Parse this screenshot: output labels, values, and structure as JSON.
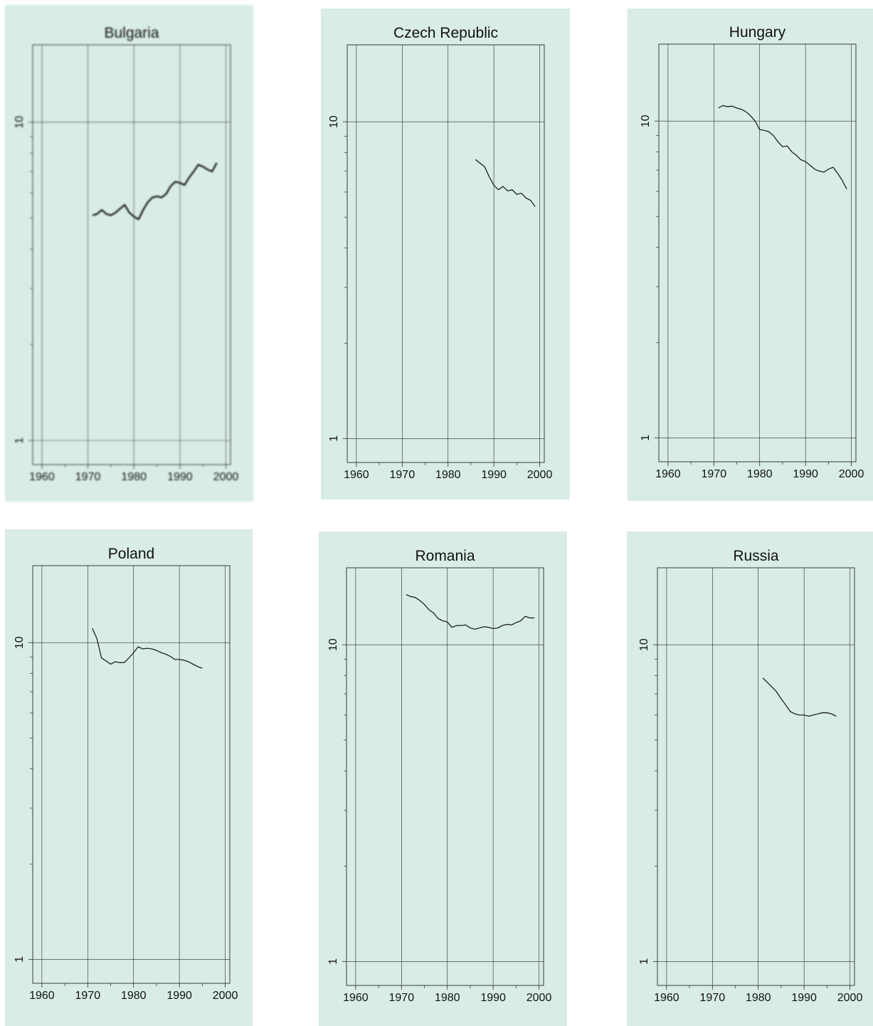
{
  "chart_data": [
    {
      "type": "line",
      "title": "Bulgaria",
      "xlabel": "",
      "ylabel": "",
      "xlim": [
        1958,
        2001
      ],
      "ylim": [
        0.84,
        17.5
      ],
      "yscale": "log",
      "x_ticks": [
        1960,
        1970,
        1980,
        1990,
        2000
      ],
      "y_ticks": [
        1,
        10
      ],
      "y_tick_labels": [
        "1",
        "10"
      ],
      "grid": true,
      "series": [
        {
          "x": [
            1971,
            1972,
            1973,
            1974,
            1975,
            1976,
            1977,
            1978,
            1979,
            1980,
            1981,
            1982,
            1983,
            1984,
            1985,
            1986,
            1987,
            1988,
            1989,
            1990,
            1991,
            1992,
            1993,
            1994,
            1995,
            1996,
            1997,
            1998
          ],
          "values": [
            5.1,
            5.15,
            5.3,
            5.15,
            5.1,
            5.2,
            5.35,
            5.5,
            5.2,
            5.05,
            4.95,
            5.3,
            5.6,
            5.8,
            5.85,
            5.8,
            5.95,
            6.3,
            6.5,
            6.45,
            6.35,
            6.7,
            7.0,
            7.35,
            7.25,
            7.1,
            7.0,
            7.45
          ]
        }
      ]
    },
    {
      "type": "line",
      "title": "Czech Republic",
      "xlabel": "",
      "ylabel": "",
      "xlim": [
        1958,
        2001
      ],
      "ylim": [
        0.84,
        17.5
      ],
      "yscale": "log",
      "x_ticks": [
        1960,
        1970,
        1980,
        1990,
        2000
      ],
      "y_ticks": [
        1,
        10
      ],
      "y_tick_labels": [
        "1",
        "10"
      ],
      "grid": true,
      "series": [
        {
          "x": [
            1986,
            1987,
            1988,
            1989,
            1990,
            1991,
            1992,
            1993,
            1994,
            1995,
            1996,
            1997,
            1998,
            1999
          ],
          "values": [
            7.6,
            7.4,
            7.2,
            6.7,
            6.3,
            6.1,
            6.25,
            6.05,
            6.1,
            5.9,
            5.95,
            5.75,
            5.65,
            5.4
          ]
        }
      ]
    },
    {
      "type": "line",
      "title": "Hungary",
      "xlabel": "",
      "ylabel": "",
      "xlim": [
        1958,
        2001
      ],
      "ylim": [
        0.84,
        17.5
      ],
      "yscale": "log",
      "x_ticks": [
        1960,
        1970,
        1980,
        1990,
        2000
      ],
      "y_ticks": [
        1,
        10
      ],
      "y_tick_labels": [
        "1",
        "10"
      ],
      "grid": true,
      "series": [
        {
          "x": [
            1971,
            1972,
            1973,
            1974,
            1975,
            1976,
            1977,
            1978,
            1979,
            1980,
            1981,
            1982,
            1983,
            1984,
            1985,
            1986,
            1987,
            1988,
            1989,
            1990,
            1991,
            1992,
            1993,
            1994,
            1995,
            1996,
            1997,
            1998,
            1999
          ],
          "values": [
            11.0,
            11.2,
            11.1,
            11.15,
            11.0,
            10.9,
            10.7,
            10.4,
            10.0,
            9.4,
            9.35,
            9.25,
            9.0,
            8.6,
            8.3,
            8.35,
            8.0,
            7.8,
            7.55,
            7.45,
            7.25,
            7.05,
            6.95,
            6.9,
            7.05,
            7.15,
            6.85,
            6.5,
            6.1
          ]
        }
      ]
    },
    {
      "type": "line",
      "title": "Poland",
      "xlabel": "",
      "ylabel": "",
      "xlim": [
        1958,
        2001
      ],
      "ylim": [
        0.84,
        17.5
      ],
      "yscale": "log",
      "x_ticks": [
        1960,
        1970,
        1980,
        1990,
        2000
      ],
      "y_ticks": [
        1,
        10
      ],
      "y_tick_labels": [
        "1",
        "10"
      ],
      "grid": true,
      "series": [
        {
          "x": [
            1971,
            1972,
            1973,
            1974,
            1975,
            1976,
            1977,
            1978,
            1979,
            1980,
            1981,
            1982,
            1983,
            1984,
            1985,
            1986,
            1987,
            1988,
            1989,
            1990,
            1991,
            1992,
            1993,
            1994,
            1995
          ],
          "values": [
            11.1,
            10.3,
            8.95,
            8.75,
            8.55,
            8.7,
            8.65,
            8.65,
            8.95,
            9.3,
            9.7,
            9.55,
            9.6,
            9.55,
            9.45,
            9.3,
            9.2,
            9.05,
            8.85,
            8.85,
            8.8,
            8.7,
            8.55,
            8.4,
            8.3
          ]
        }
      ]
    },
    {
      "type": "line",
      "title": "Romania",
      "xlabel": "",
      "ylabel": "",
      "xlim": [
        1958,
        2001
      ],
      "ylim": [
        0.84,
        17.5
      ],
      "yscale": "log",
      "x_ticks": [
        1960,
        1970,
        1980,
        1990,
        2000
      ],
      "y_ticks": [
        1,
        10
      ],
      "y_tick_labels": [
        "1",
        "10"
      ],
      "grid": true,
      "series": [
        {
          "x": [
            1971,
            1972,
            1973,
            1974,
            1975,
            1976,
            1977,
            1978,
            1979,
            1980,
            1981,
            1982,
            1983,
            1984,
            1985,
            1986,
            1987,
            1988,
            1989,
            1990,
            1991,
            1992,
            1993,
            1994,
            1995,
            1996,
            1997,
            1998,
            1999
          ],
          "values": [
            14.4,
            14.2,
            14.1,
            13.8,
            13.4,
            12.9,
            12.6,
            12.1,
            11.9,
            11.8,
            11.35,
            11.5,
            11.5,
            11.55,
            11.3,
            11.2,
            11.3,
            11.4,
            11.35,
            11.25,
            11.3,
            11.5,
            11.6,
            11.55,
            11.75,
            11.9,
            12.3,
            12.15,
            12.15
          ]
        }
      ]
    },
    {
      "type": "line",
      "title": "Russia",
      "xlabel": "",
      "ylabel": "",
      "xlim": [
        1958,
        2001
      ],
      "ylim": [
        0.84,
        17.5
      ],
      "yscale": "log",
      "x_ticks": [
        1960,
        1970,
        1980,
        1990,
        2000
      ],
      "y_ticks": [
        1,
        10
      ],
      "y_tick_labels": [
        "1",
        "10"
      ],
      "grid": true,
      "series": [
        {
          "x": [
            1981,
            1982,
            1983,
            1984,
            1985,
            1986,
            1987,
            1988,
            1989,
            1990,
            1991,
            1992,
            1993,
            1994,
            1995,
            1996,
            1997
          ],
          "values": [
            7.85,
            7.6,
            7.35,
            7.1,
            6.75,
            6.45,
            6.15,
            6.05,
            6.0,
            6.0,
            5.95,
            6.0,
            6.05,
            6.1,
            6.1,
            6.05,
            5.95
          ]
        }
      ]
    }
  ]
}
